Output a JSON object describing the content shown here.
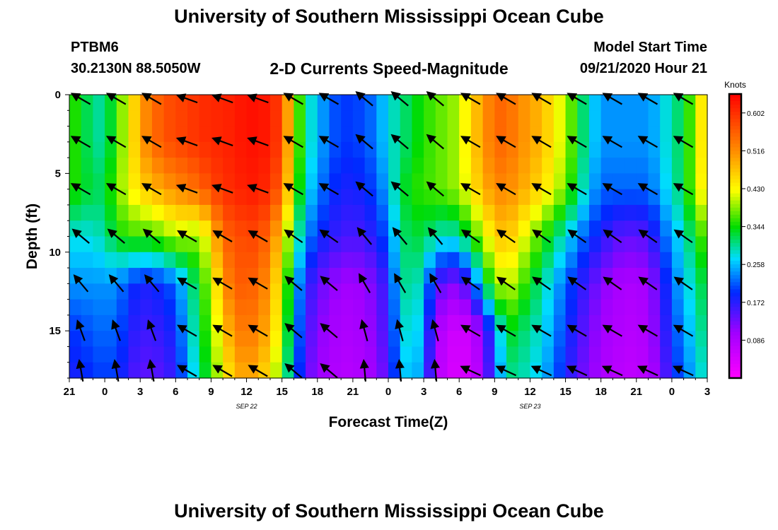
{
  "header": {
    "top_title": "University of Southern Mississippi Ocean Cube",
    "bottom_title": "University of Southern Mississippi Ocean Cube",
    "station_id": "PTBM6",
    "station_coords": "30.2130N 88.5050W",
    "chart_title": "2-D Currents Speed-Magnitude",
    "model_start_label": "Model Start Time",
    "model_start_value": "09/21/2020 Hour 21"
  },
  "chart_data": {
    "type": "heatmap",
    "title": "2-D Currents Speed-Magnitude",
    "xlabel": "Forecast Time(Z)",
    "ylabel": "Depth (ft)",
    "colorbar_label": "Knots",
    "colorbar_ticks": [
      0.086,
      0.172,
      0.258,
      0.344,
      0.43,
      0.516,
      0.602
    ],
    "colorbar_tick_labels": [
      "0.086",
      "0.172",
      "0.258",
      "0.344",
      "0.430",
      "0.516",
      "0.602"
    ],
    "colorbar_range": [
      0.0,
      0.645
    ],
    "y_ticks": [
      0,
      5,
      10,
      15
    ],
    "y_tick_labels": [
      "0",
      "5",
      "10",
      "15"
    ],
    "ylim": [
      0,
      18
    ],
    "x_tick_labels": [
      "21",
      "0",
      "3",
      "6",
      "9",
      "12",
      "15",
      "18",
      "21",
      "0",
      "3",
      "6",
      "9",
      "12",
      "15",
      "18",
      "21",
      "0",
      "3"
    ],
    "date_labels": [
      {
        "text": "SEP 22",
        "hour": 12
      },
      {
        "text": "SEP 23",
        "hour": 36
      }
    ],
    "x_hours_start": -3,
    "x_hours_end": 51,
    "time_hours": [
      -3,
      -2,
      -1,
      0,
      1,
      2,
      3,
      4,
      5,
      6,
      7,
      8,
      9,
      10,
      11,
      12,
      13,
      14,
      15,
      16,
      17,
      18,
      19,
      20,
      21,
      22,
      23,
      24,
      25,
      26,
      27,
      28,
      29,
      30,
      31,
      32,
      33,
      34,
      35,
      36,
      37,
      38,
      39,
      40,
      41,
      42,
      43,
      44,
      45,
      46,
      47,
      48,
      49,
      50,
      51
    ],
    "depth_ft": [
      0,
      3,
      6,
      9,
      12,
      15,
      18
    ],
    "speed_knots_by_depth": [
      [
        0.36,
        0.34,
        0.3,
        0.3,
        0.36,
        0.42,
        0.5,
        0.54,
        0.57,
        0.58,
        0.59,
        0.6,
        0.61,
        0.61,
        0.62,
        0.63,
        0.63,
        0.62,
        0.58,
        0.42,
        0.3,
        0.26,
        0.22,
        0.2,
        0.2,
        0.21,
        0.23,
        0.28,
        0.3,
        0.33,
        0.35,
        0.37,
        0.38,
        0.4,
        0.46,
        0.5,
        0.55,
        0.55,
        0.52,
        0.5,
        0.48,
        0.44,
        0.4,
        0.34,
        0.28,
        0.24,
        0.24,
        0.24,
        0.24,
        0.24,
        0.26,
        0.3,
        0.32,
        0.4,
        0.48
      ],
      [
        0.36,
        0.34,
        0.3,
        0.3,
        0.36,
        0.42,
        0.5,
        0.54,
        0.57,
        0.58,
        0.59,
        0.6,
        0.61,
        0.61,
        0.62,
        0.63,
        0.63,
        0.62,
        0.58,
        0.42,
        0.3,
        0.26,
        0.22,
        0.2,
        0.2,
        0.21,
        0.23,
        0.28,
        0.3,
        0.33,
        0.35,
        0.37,
        0.38,
        0.4,
        0.46,
        0.5,
        0.55,
        0.55,
        0.52,
        0.5,
        0.48,
        0.44,
        0.4,
        0.34,
        0.28,
        0.24,
        0.24,
        0.24,
        0.24,
        0.24,
        0.26,
        0.3,
        0.32,
        0.4,
        0.48
      ],
      [
        0.36,
        0.34,
        0.32,
        0.32,
        0.38,
        0.42,
        0.46,
        0.48,
        0.5,
        0.52,
        0.53,
        0.55,
        0.58,
        0.6,
        0.61,
        0.62,
        0.62,
        0.6,
        0.55,
        0.4,
        0.28,
        0.24,
        0.2,
        0.18,
        0.18,
        0.19,
        0.21,
        0.26,
        0.32,
        0.35,
        0.36,
        0.37,
        0.38,
        0.4,
        0.44,
        0.48,
        0.52,
        0.52,
        0.5,
        0.48,
        0.45,
        0.42,
        0.38,
        0.32,
        0.26,
        0.22,
        0.22,
        0.22,
        0.22,
        0.22,
        0.25,
        0.29,
        0.32,
        0.4,
        0.46
      ],
      [
        0.28,
        0.28,
        0.28,
        0.3,
        0.34,
        0.36,
        0.36,
        0.36,
        0.38,
        0.4,
        0.4,
        0.38,
        0.46,
        0.55,
        0.57,
        0.58,
        0.58,
        0.54,
        0.46,
        0.34,
        0.24,
        0.2,
        0.17,
        0.16,
        0.15,
        0.16,
        0.18,
        0.22,
        0.3,
        0.33,
        0.32,
        0.3,
        0.28,
        0.3,
        0.35,
        0.4,
        0.46,
        0.48,
        0.44,
        0.4,
        0.36,
        0.32,
        0.28,
        0.24,
        0.2,
        0.18,
        0.15,
        0.14,
        0.14,
        0.15,
        0.2,
        0.25,
        0.28,
        0.34,
        0.38
      ],
      [
        0.24,
        0.24,
        0.24,
        0.24,
        0.24,
        0.2,
        0.18,
        0.18,
        0.2,
        0.22,
        0.28,
        0.34,
        0.4,
        0.5,
        0.56,
        0.56,
        0.55,
        0.5,
        0.42,
        0.28,
        0.18,
        0.14,
        0.12,
        0.1,
        0.1,
        0.11,
        0.13,
        0.18,
        0.28,
        0.32,
        0.26,
        0.16,
        0.12,
        0.12,
        0.18,
        0.3,
        0.38,
        0.42,
        0.38,
        0.34,
        0.3,
        0.26,
        0.22,
        0.18,
        0.15,
        0.12,
        0.1,
        0.09,
        0.09,
        0.1,
        0.15,
        0.22,
        0.26,
        0.3,
        0.34
      ],
      [
        0.2,
        0.2,
        0.22,
        0.22,
        0.22,
        0.18,
        0.16,
        0.16,
        0.17,
        0.19,
        0.26,
        0.32,
        0.38,
        0.46,
        0.52,
        0.54,
        0.52,
        0.48,
        0.4,
        0.26,
        0.16,
        0.12,
        0.1,
        0.09,
        0.09,
        0.1,
        0.12,
        0.17,
        0.26,
        0.3,
        0.24,
        0.1,
        0.06,
        0.05,
        0.06,
        0.12,
        0.22,
        0.34,
        0.32,
        0.3,
        0.28,
        0.24,
        0.2,
        0.16,
        0.13,
        0.1,
        0.09,
        0.08,
        0.08,
        0.09,
        0.14,
        0.2,
        0.24,
        0.28,
        0.32
      ],
      [
        0.18,
        0.18,
        0.2,
        0.2,
        0.2,
        0.16,
        0.14,
        0.14,
        0.15,
        0.17,
        0.24,
        0.3,
        0.36,
        0.42,
        0.48,
        0.5,
        0.48,
        0.44,
        0.36,
        0.24,
        0.14,
        0.11,
        0.09,
        0.08,
        0.08,
        0.09,
        0.11,
        0.15,
        0.24,
        0.28,
        0.22,
        0.09,
        0.05,
        0.04,
        0.05,
        0.1,
        0.2,
        0.3,
        0.3,
        0.28,
        0.26,
        0.22,
        0.18,
        0.14,
        0.12,
        0.09,
        0.08,
        0.07,
        0.07,
        0.08,
        0.12,
        0.18,
        0.22,
        0.26,
        0.3
      ]
    ],
    "vector_directions_deg": [
      [
        300,
        300,
        300,
        300,
        300,
        300,
        300,
        300,
        290,
        290,
        290,
        290,
        290,
        290,
        290,
        290,
        290,
        300,
        300,
        300,
        300,
        300,
        300,
        300,
        310,
        310,
        310,
        310,
        310,
        310,
        310,
        310,
        310,
        300,
        300,
        300,
        300,
        300,
        300,
        300,
        300,
        300,
        300,
        300,
        300,
        300,
        300,
        300,
        300,
        300,
        300,
        300,
        300,
        300,
        300
      ],
      [
        300,
        300,
        300,
        300,
        300,
        300,
        300,
        300,
        290,
        290,
        290,
        290,
        290,
        290,
        290,
        290,
        290,
        300,
        300,
        300,
        300,
        300,
        300,
        300,
        310,
        310,
        310,
        310,
        310,
        310,
        310,
        310,
        310,
        300,
        300,
        300,
        300,
        300,
        300,
        300,
        300,
        300,
        300,
        300,
        300,
        300,
        300,
        300,
        300,
        300,
        300,
        300,
        300,
        300,
        300
      ],
      [
        300,
        300,
        300,
        300,
        300,
        300,
        300,
        300,
        290,
        290,
        290,
        290,
        290,
        290,
        290,
        290,
        290,
        300,
        300,
        300,
        300,
        300,
        300,
        300,
        310,
        310,
        310,
        310,
        310,
        310,
        310,
        310,
        310,
        300,
        300,
        300,
        300,
        300,
        300,
        300,
        300,
        300,
        300,
        300,
        300,
        300,
        300,
        300,
        300,
        300,
        300,
        300,
        300,
        300,
        300
      ],
      [
        310,
        310,
        310,
        310,
        310,
        310,
        310,
        310,
        300,
        300,
        300,
        300,
        300,
        300,
        300,
        300,
        300,
        305,
        305,
        305,
        305,
        305,
        305,
        305,
        320,
        320,
        320,
        320,
        320,
        320,
        320,
        320,
        320,
        305,
        305,
        305,
        305,
        305,
        305,
        305,
        305,
        305,
        305,
        305,
        305,
        305,
        305,
        305,
        305,
        305,
        305,
        305,
        305,
        305,
        305
      ],
      [
        320,
        320,
        320,
        320,
        320,
        320,
        320,
        320,
        300,
        300,
        300,
        300,
        300,
        300,
        300,
        300,
        300,
        310,
        310,
        310,
        310,
        310,
        310,
        310,
        330,
        330,
        330,
        330,
        330,
        330,
        330,
        330,
        330,
        305,
        305,
        305,
        305,
        305,
        305,
        305,
        305,
        305,
        305,
        305,
        305,
        305,
        305,
        305,
        305,
        305,
        305,
        305,
        305,
        305,
        305
      ],
      [
        340,
        340,
        340,
        340,
        340,
        340,
        340,
        340,
        300,
        300,
        300,
        300,
        300,
        300,
        300,
        300,
        300,
        310,
        310,
        310,
        310,
        310,
        310,
        310,
        345,
        345,
        345,
        345,
        345,
        345,
        345,
        345,
        345,
        300,
        300,
        300,
        300,
        300,
        300,
        300,
        300,
        300,
        300,
        300,
        300,
        300,
        300,
        300,
        300,
        300,
        300,
        300,
        300,
        300,
        300
      ],
      [
        350,
        350,
        350,
        350,
        350,
        350,
        350,
        350,
        300,
        300,
        300,
        300,
        300,
        300,
        300,
        300,
        300,
        310,
        310,
        310,
        310,
        310,
        310,
        310,
        355,
        355,
        355,
        355,
        355,
        355,
        355,
        355,
        355,
        295,
        295,
        295,
        295,
        295,
        295,
        295,
        295,
        295,
        295,
        295,
        295,
        295,
        295,
        295,
        295,
        295,
        295,
        295,
        295,
        295,
        295
      ]
    ]
  }
}
